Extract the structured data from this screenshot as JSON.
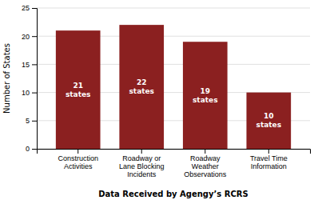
{
  "chart_data": {
    "type": "bar",
    "xlabel": "Data Received by Agengy’s RCRS",
    "ylabel": "Number of States",
    "categories": [
      "Construction\nActivities",
      "Roadway or\nLane Blocking\nIncidents",
      "Roadway\nWeather\nObservations",
      "Travel Time\nInformation"
    ],
    "values": [
      21,
      22,
      19,
      10
    ],
    "value_labels": [
      "21\nstates",
      "22\nstates",
      "19\nstates",
      "10\nstates"
    ],
    "data_labels": true,
    "color": "#8B2020",
    "ylim": [
      0,
      25
    ],
    "yticks": [
      0,
      5,
      10,
      15,
      20,
      25
    ],
    "grid": true
  }
}
